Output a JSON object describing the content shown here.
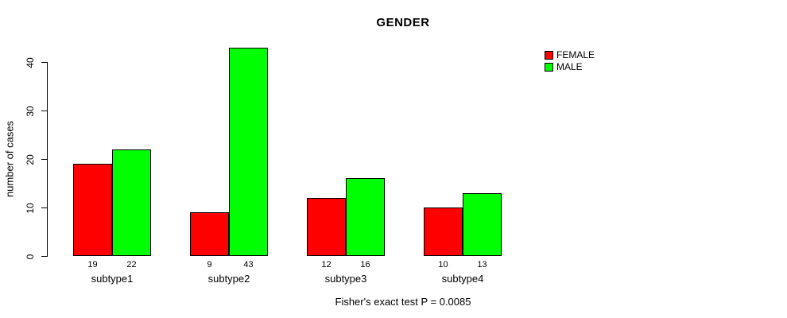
{
  "chart_data": {
    "type": "bar",
    "title": "GENDER",
    "categories": [
      "subtype1",
      "subtype2",
      "subtype3",
      "subtype4"
    ],
    "series": [
      {
        "name": "FEMALE",
        "color": "#ff0000",
        "values": [
          19,
          9,
          12,
          10
        ]
      },
      {
        "name": "MALE",
        "color": "#00ff00",
        "values": [
          22,
          43,
          16,
          13
        ]
      }
    ],
    "xlabel": "",
    "ylabel": "number of cases",
    "ylim": [
      0,
      44
    ],
    "yticks": [
      0,
      10,
      20,
      30,
      40
    ],
    "grid": false,
    "bar_value_labels": true,
    "legend_position": "top-right-inside",
    "annotation": "Fisher's exact test P = 0.0085"
  }
}
